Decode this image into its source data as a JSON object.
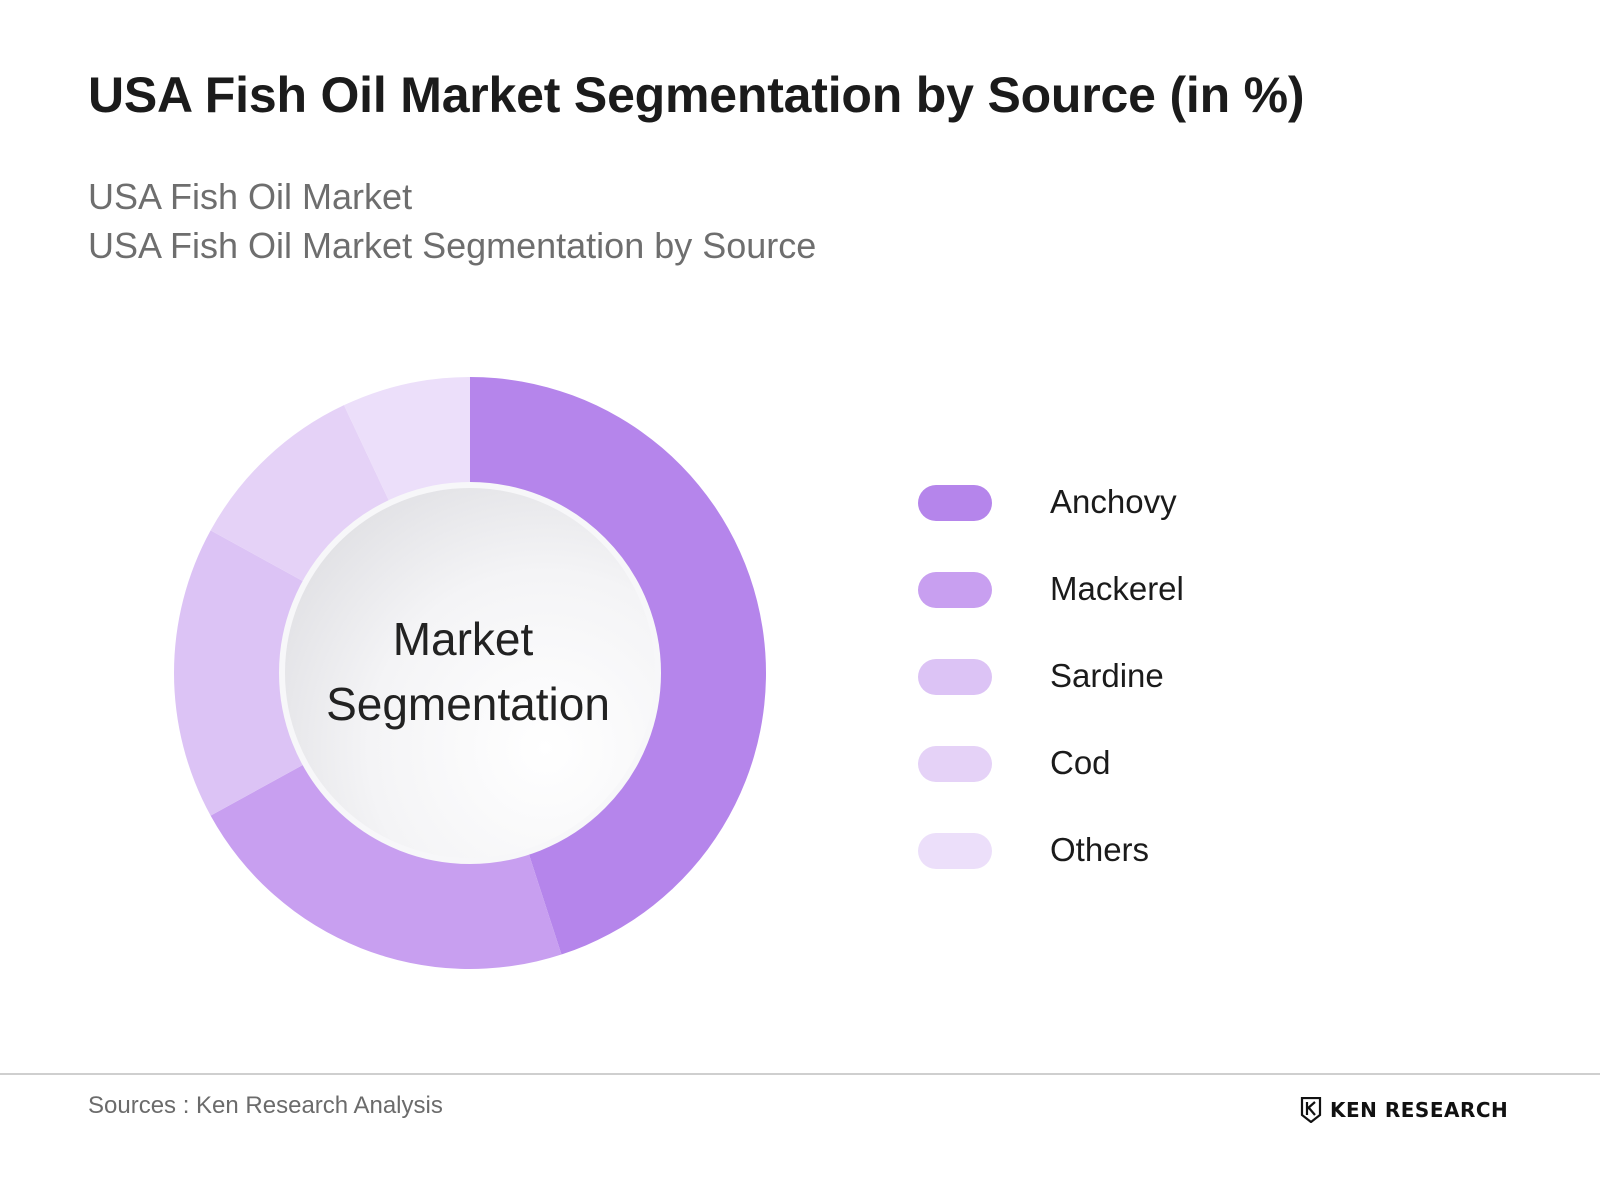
{
  "header": {
    "title": "USA Fish Oil Market Segmentation by Source (in %)",
    "subtitle_line1": "USA Fish Oil Market",
    "subtitle_line2": "USA Fish Oil Market Segmentation by Source"
  },
  "chart_data": {
    "type": "pie",
    "variant": "donut",
    "title": "USA Fish Oil Market Segmentation by Source (in %)",
    "center_label": [
      "Market",
      "Segmentation"
    ],
    "categories": [
      "Anchovy",
      "Mackerel",
      "Sardine",
      "Cod",
      "Others"
    ],
    "values": [
      45,
      22,
      16,
      10,
      7
    ],
    "colors": [
      "#b585eb",
      "#c89ff0",
      "#dcc3f5",
      "#e5d2f7",
      "#ecdffa"
    ],
    "legend_position": "right"
  },
  "footer": {
    "source": "Sources : Ken Research Analysis",
    "brand_name": "KEN RESEARCH",
    "brand_icon": "ken-research-logo-icon"
  }
}
